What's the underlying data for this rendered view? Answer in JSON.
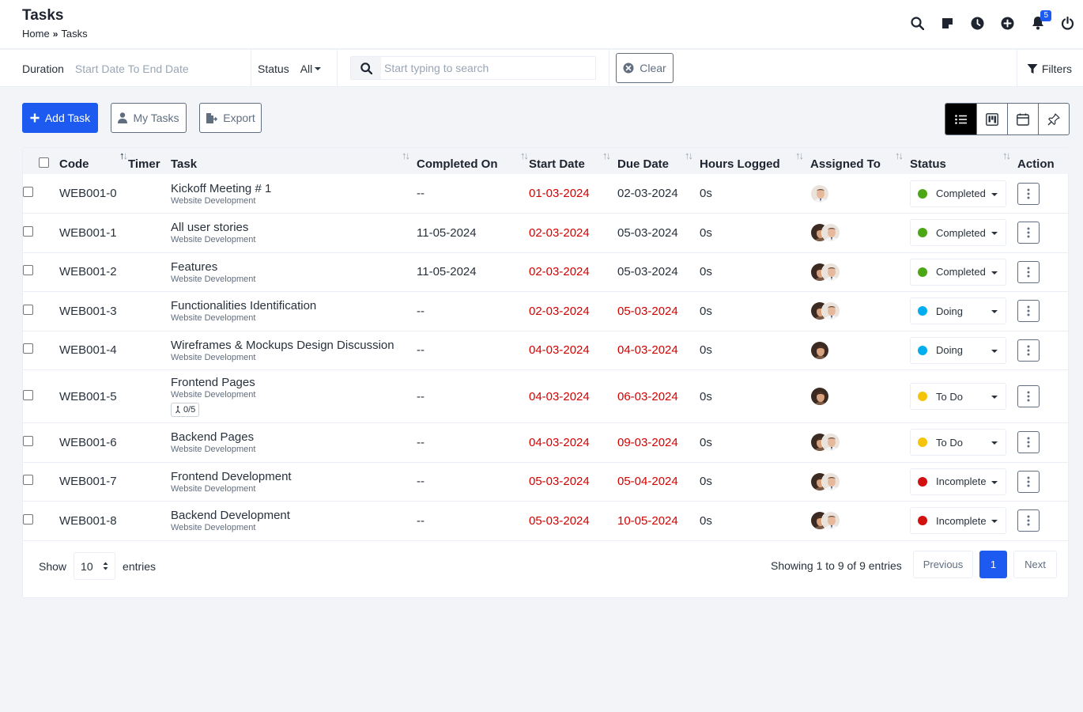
{
  "header": {
    "title": "Tasks",
    "breadcrumb": [
      "Home",
      "Tasks"
    ],
    "notification_count": "5"
  },
  "filters": {
    "duration_label": "Duration",
    "duration_placeholder": "Start Date To End Date",
    "status_label": "Status",
    "status_value": "All",
    "search_placeholder": "Start typing to search",
    "clear_label": "Clear",
    "filters_label": "Filters"
  },
  "actions": {
    "add_task": "Add Task",
    "my_tasks": "My Tasks",
    "export": "Export"
  },
  "table": {
    "columns": [
      "Code",
      "Timer",
      "Task",
      "Completed On",
      "Start Date",
      "Due Date",
      "Hours Logged",
      "Assigned To",
      "Status",
      "Action"
    ],
    "rows": [
      {
        "code": "WEB001-0",
        "task": "Kickoff Meeting # 1",
        "project": "Website Development",
        "completed_on": "--",
        "start_date": "01-03-2024",
        "due_date": "02-03-2024",
        "start_overdue": true,
        "due_overdue": false,
        "hours": "0s",
        "avatars": [
          "man"
        ],
        "status": "Completed",
        "status_color": "#4da616",
        "subtasks": ""
      },
      {
        "code": "WEB001-1",
        "task": "All user stories",
        "project": "Website Development",
        "completed_on": "11-05-2024",
        "start_date": "02-03-2024",
        "due_date": "05-03-2024",
        "start_overdue": true,
        "due_overdue": false,
        "hours": "0s",
        "avatars": [
          "woman",
          "man"
        ],
        "status": "Completed",
        "status_color": "#4da616",
        "subtasks": ""
      },
      {
        "code": "WEB001-2",
        "task": "Features",
        "project": "Website Development",
        "completed_on": "11-05-2024",
        "start_date": "02-03-2024",
        "due_date": "05-03-2024",
        "start_overdue": true,
        "due_overdue": false,
        "hours": "0s",
        "avatars": [
          "woman",
          "man"
        ],
        "status": "Completed",
        "status_color": "#4da616",
        "subtasks": ""
      },
      {
        "code": "WEB001-3",
        "task": "Functionalities Identification",
        "project": "Website Development",
        "completed_on": "--",
        "start_date": "02-03-2024",
        "due_date": "05-03-2024",
        "start_overdue": true,
        "due_overdue": true,
        "hours": "0s",
        "avatars": [
          "woman",
          "man"
        ],
        "status": "Doing",
        "status_color": "#00aeef",
        "subtasks": ""
      },
      {
        "code": "WEB001-4",
        "task": "Wireframes & Mockups Design Discussion",
        "project": "Website Development",
        "completed_on": "--",
        "start_date": "04-03-2024",
        "due_date": "04-03-2024",
        "start_overdue": true,
        "due_overdue": true,
        "hours": "0s",
        "avatars": [
          "woman"
        ],
        "status": "Doing",
        "status_color": "#00aeef",
        "subtasks": ""
      },
      {
        "code": "WEB001-5",
        "task": "Frontend Pages",
        "project": "Website Development",
        "completed_on": "--",
        "start_date": "04-03-2024",
        "due_date": "06-03-2024",
        "start_overdue": true,
        "due_overdue": true,
        "hours": "0s",
        "avatars": [
          "woman"
        ],
        "status": "To Do",
        "status_color": "#f5c308",
        "subtasks": "0/5"
      },
      {
        "code": "WEB001-6",
        "task": "Backend Pages",
        "project": "Website Development",
        "completed_on": "--",
        "start_date": "04-03-2024",
        "due_date": "09-03-2024",
        "start_overdue": true,
        "due_overdue": true,
        "hours": "0s",
        "avatars": [
          "woman",
          "man"
        ],
        "status": "To Do",
        "status_color": "#f5c308",
        "subtasks": ""
      },
      {
        "code": "WEB001-7",
        "task": "Frontend Development",
        "project": "Website Development",
        "completed_on": "--",
        "start_date": "05-03-2024",
        "due_date": "05-04-2024",
        "start_overdue": true,
        "due_overdue": true,
        "hours": "0s",
        "avatars": [
          "woman",
          "man"
        ],
        "status": "Incomplete",
        "status_color": "#d21010",
        "subtasks": ""
      },
      {
        "code": "WEB001-8",
        "task": "Backend Development",
        "project": "Website Development",
        "completed_on": "--",
        "start_date": "05-03-2024",
        "due_date": "10-05-2024",
        "start_overdue": true,
        "due_overdue": true,
        "hours": "0s",
        "avatars": [
          "woman",
          "man"
        ],
        "status": "Incomplete",
        "status_color": "#d21010",
        "subtasks": ""
      }
    ]
  },
  "footer": {
    "show_label": "Show",
    "page_length": "10",
    "entries_label": "entries",
    "info": "Showing 1 to 9 of 9 entries",
    "previous": "Previous",
    "current_page": "1",
    "next": "Next"
  },
  "icons": {
    "top": [
      "search-icon",
      "sticky-note-icon",
      "clock-icon",
      "plus-circle-icon",
      "bell-icon",
      "power-icon"
    ],
    "views": [
      "list-view-icon",
      "kanban-view-icon",
      "calendar-view-icon",
      "pin-icon"
    ]
  }
}
